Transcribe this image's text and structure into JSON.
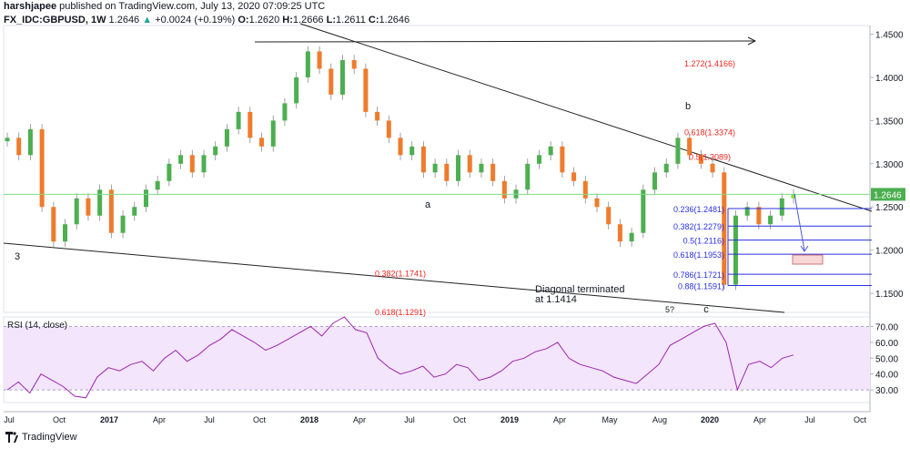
{
  "header": {
    "publisher_user": "harshjapee",
    "publisher_text": "published on TradingView.com, July 13, 2020 07:09:25 UTC",
    "symbol": "FX_IDC:GBPUSD, 1W",
    "last": "1.2646",
    "change": "+0.0024 (+0.19%)",
    "open_label": "O:",
    "open": "1.2620",
    "high_label": "H:",
    "high": "1.2666",
    "low_label": "L:",
    "low": "1.2611",
    "close_label": "C:",
    "close": "1.2646"
  },
  "footer": {
    "brand": "TradingView"
  },
  "colors": {
    "bull": "#4caf50",
    "bull_bright": "#7ee531",
    "bear": "#ef7b2c",
    "fib_red": "#f0261e",
    "fib_blue": "#2a31e0",
    "rsi": "#9c27b0",
    "rsi_band": "#f3e5fb",
    "price_line": "#7cdf87",
    "box_fill": "#f8d7d7"
  },
  "chart_data": {
    "type": "candlestick",
    "price_axis": {
      "ticks": [
        "1.4500",
        "1.4000",
        "1.3500",
        "1.3000",
        "1.2500",
        "1.2000",
        "1.1500"
      ],
      "range": [
        1.128,
        1.46
      ]
    },
    "current_price_label": "1.2646",
    "time_axis": [
      "Jul",
      "Oct",
      "2017",
      "Apr",
      "Jul",
      "Oct",
      "2018",
      "Apr",
      "Jul",
      "Oct",
      "2019",
      "Apr",
      "May",
      "Aug",
      "2020",
      "Apr",
      "Jul",
      "Oct"
    ],
    "close_path": [
      1.33,
      1.31,
      1.34,
      1.25,
      1.21,
      1.23,
      1.26,
      1.24,
      1.27,
      1.22,
      1.24,
      1.25,
      1.27,
      1.28,
      1.3,
      1.31,
      1.29,
      1.31,
      1.32,
      1.34,
      1.36,
      1.33,
      1.32,
      1.35,
      1.37,
      1.4,
      1.43,
      1.41,
      1.38,
      1.42,
      1.41,
      1.36,
      1.35,
      1.33,
      1.31,
      1.32,
      1.29,
      1.3,
      1.28,
      1.31,
      1.29,
      1.3,
      1.28,
      1.26,
      1.27,
      1.3,
      1.31,
      1.32,
      1.29,
      1.28,
      1.26,
      1.25,
      1.23,
      1.21,
      1.22,
      1.27,
      1.29,
      1.3,
      1.33,
      1.31,
      1.3,
      1.29,
      1.16,
      1.24,
      1.25,
      1.23,
      1.24,
      1.26,
      1.2646
    ],
    "fib_levels_red": [
      {
        "label": "1.272(1.4166)",
        "value": 1.4166
      },
      {
        "label": "0.618(1.3374)",
        "value": 1.3374
      },
      {
        "label": "0.5(1.3089)",
        "value": 1.3089
      },
      {
        "label": "0.382(1.1741)",
        "value": 1.1741
      },
      {
        "label": "0.618(1.1291)",
        "value": 1.1291
      }
    ],
    "fib_levels_blue": [
      {
        "label": "0.236(1.2481)",
        "value": 1.2481
      },
      {
        "label": "0.382(1.2279)",
        "value": 1.2279
      },
      {
        "label": "0.5(1.2116)",
        "value": 1.2116
      },
      {
        "label": "0.618(1.1953)",
        "value": 1.1953
      },
      {
        "label": "0.786(1.1721)",
        "value": 1.1721
      },
      {
        "label": "0.88(1.1591)",
        "value": 1.1591
      }
    ],
    "annotations": [
      "3",
      "a",
      "b",
      "5?",
      "c",
      "Diagonal terminated",
      "at 1.1414"
    ],
    "rsi": {
      "title": "RSI (14, close)",
      "ticks": [
        "70.00",
        "60.00",
        "50.00",
        "40.00",
        "30.00"
      ],
      "range": [
        22,
        76
      ],
      "band": [
        30,
        70
      ],
      "values": [
        30,
        35,
        28,
        40,
        36,
        32,
        26,
        25,
        38,
        44,
        42,
        46,
        48,
        42,
        50,
        55,
        48,
        52,
        58,
        62,
        68,
        64,
        60,
        55,
        58,
        62,
        66,
        70,
        64,
        72,
        76,
        68,
        66,
        50,
        44,
        40,
        42,
        45,
        38,
        40,
        46,
        44,
        36,
        38,
        42,
        48,
        50,
        54,
        56,
        60,
        50,
        46,
        44,
        42,
        38,
        36,
        34,
        40,
        46,
        58,
        62,
        66,
        70,
        72,
        60,
        30,
        46,
        48,
        44,
        50,
        52
      ]
    }
  }
}
